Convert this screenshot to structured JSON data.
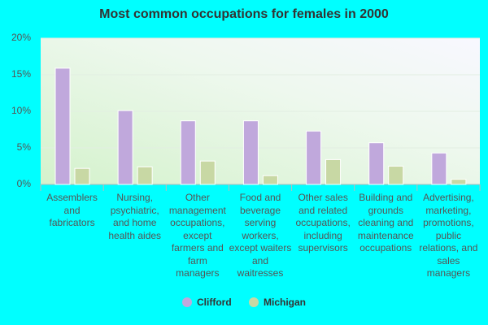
{
  "chart_data": {
    "type": "bar",
    "title": "Most common occupations for females in 2000",
    "categories": [
      "Assemblers and fabricators",
      "Nursing, psychiatric, and home health aides",
      "Other management occupations, except farmers and farm managers",
      "Food and beverage serving workers, except waiters and waitresses",
      "Other sales and related occupations, including supervisors",
      "Building and grounds cleaning and maintenance occupations",
      "Advertising, marketing, promotions, public relations, and sales managers"
    ],
    "series": [
      {
        "name": "Clifford",
        "color": "#c0a8dc",
        "values": [
          15.9,
          10.1,
          8.7,
          8.7,
          7.3,
          5.7,
          4.3
        ]
      },
      {
        "name": "Michigan",
        "color": "#c8d8a4",
        "values": [
          2.2,
          2.4,
          3.2,
          1.2,
          3.4,
          2.5,
          0.7
        ]
      }
    ],
    "ylim": [
      0,
      20
    ],
    "yticks": [
      {
        "value": 0,
        "label": "0%"
      },
      {
        "value": 5,
        "label": "5%"
      },
      {
        "value": 10,
        "label": "10%"
      },
      {
        "value": 15,
        "label": "15%"
      },
      {
        "value": 20,
        "label": "20%"
      }
    ],
    "grid": true
  }
}
